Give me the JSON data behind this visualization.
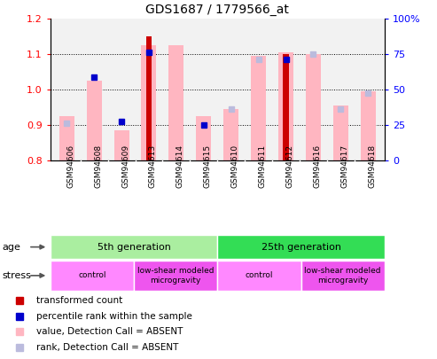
{
  "title": "GDS1687 / 1779566_at",
  "samples": [
    "GSM94606",
    "GSM94608",
    "GSM94609",
    "GSM94613",
    "GSM94614",
    "GSM94615",
    "GSM94610",
    "GSM94611",
    "GSM94612",
    "GSM94616",
    "GSM94617",
    "GSM94618"
  ],
  "red_bars": [
    null,
    null,
    null,
    1.15,
    null,
    null,
    null,
    null,
    1.1,
    null,
    null,
    null
  ],
  "pink_bars": [
    0.925,
    1.025,
    0.885,
    1.125,
    1.125,
    0.925,
    0.945,
    1.095,
    1.105,
    1.1,
    0.955,
    0.995
  ],
  "blue_squares": [
    null,
    1.035,
    0.91,
    1.105,
    null,
    0.9,
    null,
    null,
    1.085,
    null,
    null,
    null
  ],
  "lavender_squares": [
    0.905,
    null,
    null,
    null,
    null,
    null,
    0.945,
    1.085,
    null,
    1.1,
    0.945,
    0.99
  ],
  "ylim_left": [
    0.8,
    1.2
  ],
  "ylim_right": [
    0,
    100
  ],
  "right_ticks": [
    0,
    25,
    50,
    75,
    100
  ],
  "right_tick_labels": [
    "0",
    "25",
    "50",
    "75",
    "100%"
  ],
  "left_ticks": [
    0.8,
    0.9,
    1.0,
    1.1,
    1.2
  ],
  "dotted_lines": [
    0.9,
    1.0,
    1.1
  ],
  "age_groups": [
    {
      "label": "5th generation",
      "start": 0,
      "end": 6,
      "color": "#AAEEA0"
    },
    {
      "label": "25th generation",
      "start": 6,
      "end": 12,
      "color": "#33DD55"
    }
  ],
  "stress_groups": [
    {
      "label": "control",
      "start": 0,
      "end": 3,
      "color": "#FF88FF"
    },
    {
      "label": "low-shear modeled\nmicrogravity",
      "start": 3,
      "end": 6,
      "color": "#EE55EE"
    },
    {
      "label": "control",
      "start": 6,
      "end": 9,
      "color": "#FF88FF"
    },
    {
      "label": "low-shear modeled\nmicrogravity",
      "start": 9,
      "end": 12,
      "color": "#EE55EE"
    }
  ],
  "legend_items": [
    {
      "label": "transformed count",
      "color": "#CC0000"
    },
    {
      "label": "percentile rank within the sample",
      "color": "#0000CC"
    },
    {
      "label": "value, Detection Call = ABSENT",
      "color": "#FFB6C1"
    },
    {
      "label": "rank, Detection Call = ABSENT",
      "color": "#BBBBDD"
    }
  ],
  "pink_bar_color": "#FFB6C1",
  "red_bar_color": "#CC0000",
  "blue_sq_color": "#0000CC",
  "lav_sq_color": "#BBBBDD",
  "plot_bg": "#F2F2F2",
  "sample_row_bg": "#C8C8C8",
  "bar_width": 0.55,
  "red_bar_width": 0.22
}
